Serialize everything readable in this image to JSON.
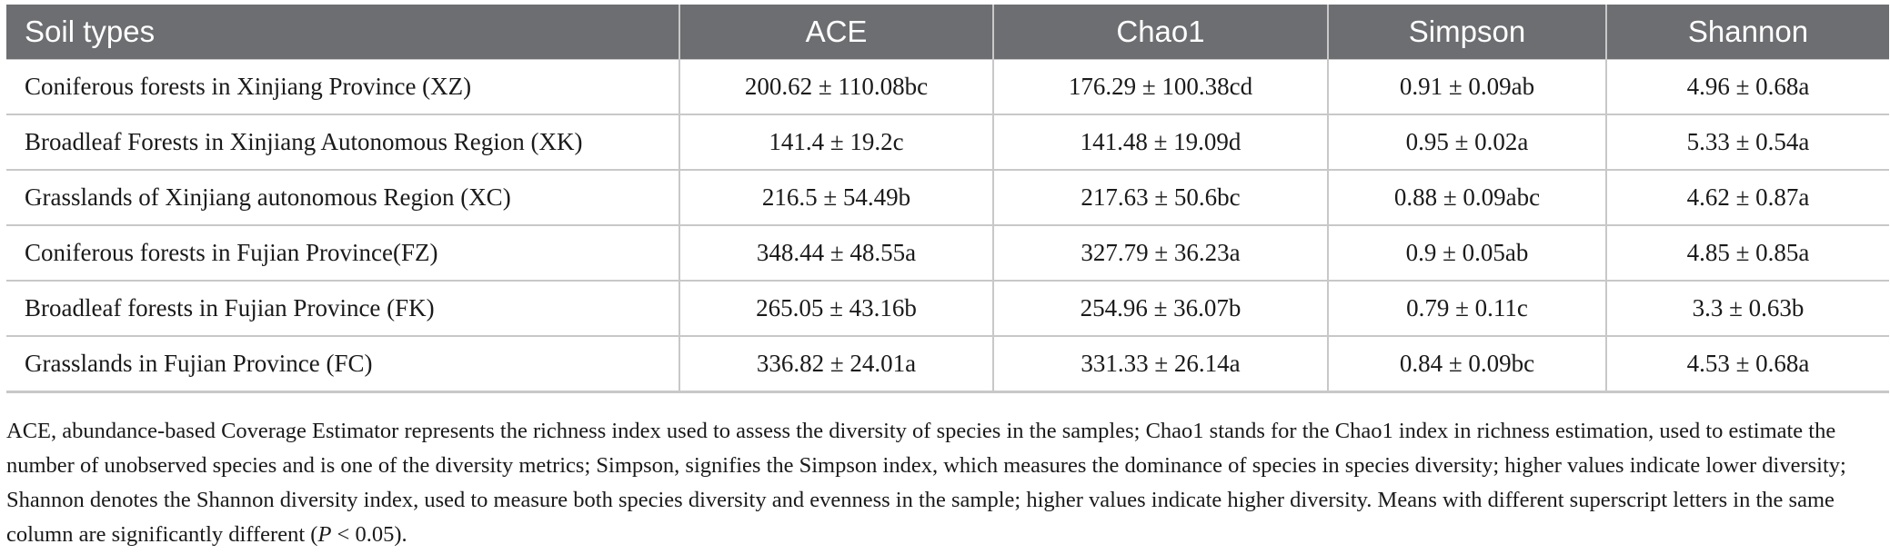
{
  "table": {
    "headers": [
      "Soil types",
      "ACE",
      "Chao1",
      "Simpson",
      "Shannon"
    ],
    "rows": [
      [
        "Coniferous forests in Xinjiang Province (XZ)",
        "200.62 ± 110.08bc",
        "176.29 ± 100.38cd",
        "0.91 ± 0.09ab",
        "4.96 ± 0.68a"
      ],
      [
        "Broadleaf Forests in Xinjiang Autonomous Region (XK)",
        "141.4 ± 19.2c",
        "141.48 ± 19.09d",
        "0.95 ± 0.02a",
        "5.33 ± 0.54a"
      ],
      [
        "Grasslands of Xinjiang autonomous Region (XC)",
        "216.5 ± 54.49b",
        "217.63 ± 50.6bc",
        "0.88 ± 0.09abc",
        "4.62 ± 0.87a"
      ],
      [
        "Coniferous forests in Fujian Province(FZ)",
        "348.44 ± 48.55a",
        "327.79 ± 36.23a",
        "0.9 ± 0.05ab",
        "4.85 ± 0.85a"
      ],
      [
        "Broadleaf forests in Fujian Province (FK)",
        "265.05 ± 43.16b",
        "254.96 ± 36.07b",
        "0.79 ± 0.11c",
        "3.3 ± 0.63b"
      ],
      [
        "Grasslands in Fujian Province (FC)",
        "336.82 ± 24.01a",
        "331.33 ± 26.14a",
        "0.84 ± 0.09bc",
        "4.53 ± 0.68a"
      ]
    ]
  },
  "footnote": {
    "text": "ACE, abundance-based Coverage Estimator represents the richness index used to assess the diversity of species in the samples; Chao1 stands for the Chao1 index in richness estimation, used to estimate the number of unobserved species and is one of the diversity metrics; Simpson, signifies the Simpson index, which measures the dominance of species in species diversity; higher values indicate lower diversity; Shannon denotes the Shannon diversity index, used to measure both species diversity and evenness in the sample; higher values indicate higher diversity. Means with different superscript letters in the same column are significantly different (",
    "p_symbol": "P",
    "p_value": " < 0.05)."
  }
}
